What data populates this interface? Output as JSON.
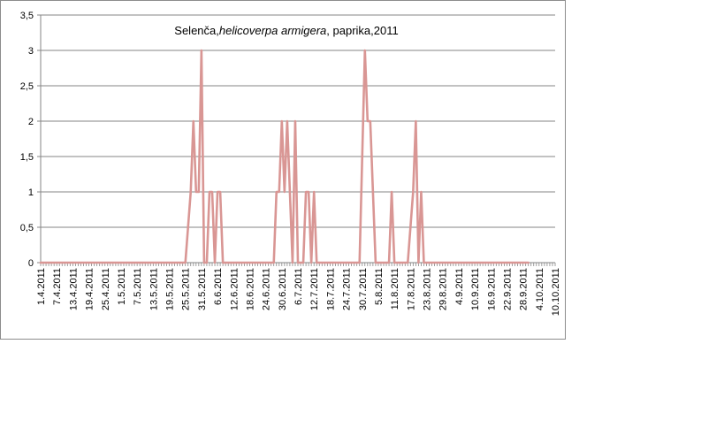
{
  "chart_data": {
    "type": "line",
    "title": {
      "prefix": "Selenča,",
      "italic": "helicoverpa armigera",
      "suffix": ", paprika,2011"
    },
    "xlabel": "",
    "ylabel": "",
    "ylim": [
      0,
      3.5
    ],
    "y_ticks": [
      "0",
      "0,5",
      "1",
      "1,5",
      "2",
      "2,5",
      "3",
      "3,5"
    ],
    "y_tick_values": [
      0,
      0.5,
      1,
      1.5,
      2,
      2.5,
      3,
      3.5
    ],
    "x_start": "2011-04-01",
    "x_end": "2011-10-10",
    "x_ticks": [
      "1.4.2011",
      "7.4.2011",
      "13.4.2011",
      "19.4.2011",
      "25.4.2011",
      "1.5.2011",
      "7.5.2011",
      "13.5.2011",
      "19.5.2011",
      "25.5.2011",
      "31.5.2011",
      "6.6.2011",
      "12.6.2011",
      "18.6.2011",
      "24.6.2011",
      "30.6.2011",
      "6.7.2011",
      "12.7.2011",
      "18.7.2011",
      "24.7.2011",
      "30.7.2011",
      "5.8.2011",
      "11.8.2011",
      "17.8.2011",
      "23.8.2011",
      "29.8.2011",
      "4.9.2011",
      "10.9.2011",
      "16.9.2011",
      "22.9.2011",
      "28.9.2011",
      "4.10.2011",
      "10.10.2011"
    ],
    "grid": true,
    "legend": "none",
    "line_color": "#d99694",
    "series": [
      {
        "points": [
          [
            "2011-04-01",
            0
          ],
          [
            "2011-05-25",
            0
          ],
          [
            "2011-05-27",
            1
          ],
          [
            "2011-05-28",
            2
          ],
          [
            "2011-05-29",
            1
          ],
          [
            "2011-05-30",
            1
          ],
          [
            "2011-05-31",
            3
          ],
          [
            "2011-06-01",
            0
          ],
          [
            "2011-06-02",
            0
          ],
          [
            "2011-06-03",
            1
          ],
          [
            "2011-06-04",
            1
          ],
          [
            "2011-06-05",
            0
          ],
          [
            "2011-06-06",
            1
          ],
          [
            "2011-06-07",
            1
          ],
          [
            "2011-06-08",
            0
          ],
          [
            "2011-06-27",
            0
          ],
          [
            "2011-06-28",
            1
          ],
          [
            "2011-06-29",
            1
          ],
          [
            "2011-06-30",
            2
          ],
          [
            "2011-07-01",
            1
          ],
          [
            "2011-07-02",
            2
          ],
          [
            "2011-07-03",
            1
          ],
          [
            "2011-07-04",
            0
          ],
          [
            "2011-07-05",
            2
          ],
          [
            "2011-07-06",
            0
          ],
          [
            "2011-07-08",
            0
          ],
          [
            "2011-07-09",
            1
          ],
          [
            "2011-07-10",
            1
          ],
          [
            "2011-07-11",
            0
          ],
          [
            "2011-07-12",
            1
          ],
          [
            "2011-07-13",
            0
          ],
          [
            "2011-07-29",
            0
          ],
          [
            "2011-07-31",
            3
          ],
          [
            "2011-08-01",
            2
          ],
          [
            "2011-08-02",
            2
          ],
          [
            "2011-08-04",
            0
          ],
          [
            "2011-08-09",
            0
          ],
          [
            "2011-08-10",
            1
          ],
          [
            "2011-08-11",
            0
          ],
          [
            "2011-08-16",
            0
          ],
          [
            "2011-08-18",
            1
          ],
          [
            "2011-08-19",
            2
          ],
          [
            "2011-08-20",
            0
          ],
          [
            "2011-08-21",
            1
          ],
          [
            "2011-08-22",
            0
          ],
          [
            "2011-09-30",
            0
          ]
        ]
      }
    ]
  }
}
